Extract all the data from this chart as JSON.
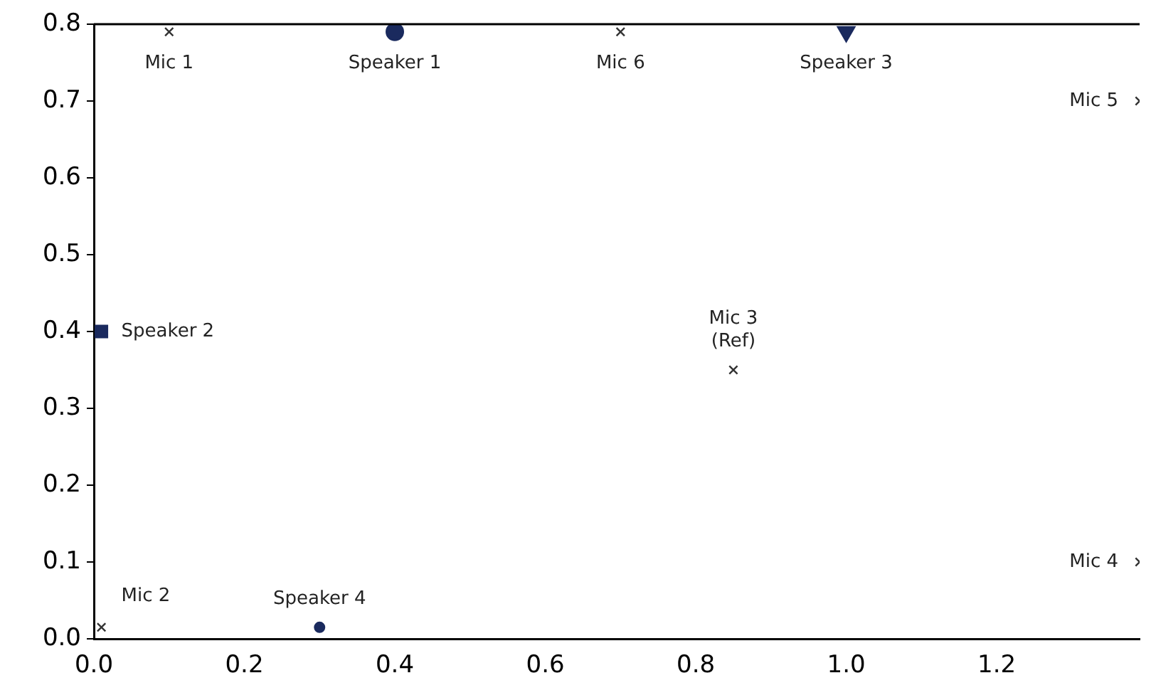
{
  "chart_data": {
    "type": "scatter",
    "xlim": [
      0,
      1.39
    ],
    "ylim": [
      0,
      0.8
    ],
    "xticks": [
      {
        "value": 0,
        "label": "0.0"
      },
      {
        "value": 0.2,
        "label": "0.2"
      },
      {
        "value": 0.4,
        "label": "0.4"
      },
      {
        "value": 0.6,
        "label": "0.6"
      },
      {
        "value": 0.8,
        "label": "0.8"
      },
      {
        "value": 1.0,
        "label": "1.0"
      },
      {
        "value": 1.2,
        "label": "1.2"
      }
    ],
    "yticks": [
      {
        "value": 0,
        "label": "0.0"
      },
      {
        "value": 0.1,
        "label": "0.1"
      },
      {
        "value": 0.2,
        "label": "0.2"
      },
      {
        "value": 0.3,
        "label": "0.3"
      },
      {
        "value": 0.4,
        "label": "0.4"
      },
      {
        "value": 0.5,
        "label": "0.5"
      },
      {
        "value": 0.6,
        "label": "0.6"
      },
      {
        "value": 0.7,
        "label": "0.7"
      },
      {
        "value": 0.8,
        "label": "0.8"
      }
    ],
    "grid": false,
    "legend": false,
    "series": [
      {
        "color": "#333333",
        "marker": "cross",
        "x": [
          0.1,
          0.7,
          1.39,
          0.85,
          0.01,
          1.39
        ],
        "values": [
          0.79,
          0.79,
          0.7,
          0.35,
          0.015,
          0.1
        ]
      },
      {
        "color": "#1a2a5e",
        "marker": "circle",
        "x": [
          0.4
        ],
        "values": [
          0.79
        ]
      },
      {
        "color": "#1a2a5e",
        "marker": "square",
        "x": [
          0.01
        ],
        "values": [
          0.4
        ]
      },
      {
        "color": "#1a2a5e",
        "marker": "triangle",
        "x": [
          1.0
        ],
        "values": [
          0.79
        ]
      },
      {
        "color": "#1a2a5e",
        "marker": "circle",
        "x": [
          0.3
        ],
        "values": [
          0.015
        ]
      }
    ],
    "annotations": [
      {
        "text": "Mic 1",
        "x": 0.1,
        "y": 0.79
      },
      {
        "text": "Speaker 1",
        "x": 0.4,
        "y": 0.79
      },
      {
        "text": "Mic 6",
        "x": 0.7,
        "y": 0.79
      },
      {
        "text": "Speaker 3",
        "x": 1.0,
        "y": 0.79
      },
      {
        "text": "Mic 5",
        "x": 1.39,
        "y": 0.7
      },
      {
        "text": "Mic 3\n(Ref)",
        "x": 0.85,
        "y": 0.35
      },
      {
        "text": "Speaker 2",
        "x": 0.01,
        "y": 0.4
      },
      {
        "text": "Mic 2",
        "x": 0.01,
        "y": 0.015
      },
      {
        "text": "Speaker 4",
        "x": 0.3,
        "y": 0.015
      },
      {
        "text": "Mic 4",
        "x": 1.39,
        "y": 0.1
      }
    ]
  }
}
